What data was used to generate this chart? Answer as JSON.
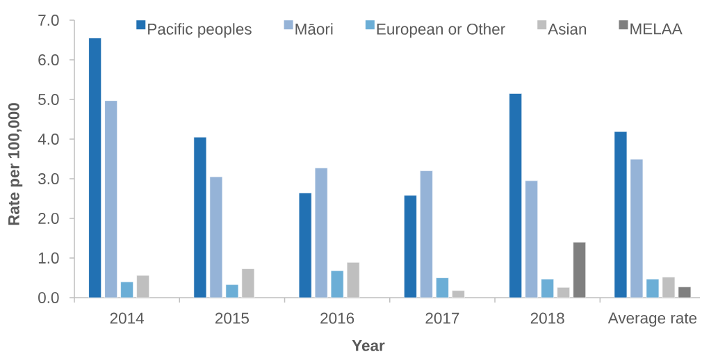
{
  "chart_data": {
    "type": "bar",
    "xlabel": "Year",
    "ylabel": "Rate per 100,000",
    "categories": [
      "2014",
      "2015",
      "2016",
      "2017",
      "2018",
      "Average rate"
    ],
    "series": [
      {
        "name": "Pacific peoples",
        "color": "#2271b3",
        "values": [
          6.55,
          4.05,
          2.64,
          2.58,
          5.15,
          4.19
        ]
      },
      {
        "name": "Māori",
        "color": "#95b3d7",
        "values": [
          4.97,
          3.05,
          3.27,
          3.2,
          2.95,
          3.49
        ]
      },
      {
        "name": "European or Other",
        "color": "#6baed6",
        "values": [
          0.4,
          0.33,
          0.68,
          0.5,
          0.47,
          0.47
        ]
      },
      {
        "name": "Asian",
        "color": "#bfbfbf",
        "values": [
          0.56,
          0.73,
          0.89,
          0.18,
          0.26,
          0.52
        ]
      },
      {
        "name": "MELAA",
        "color": "#7f7f7f",
        "values": [
          null,
          null,
          null,
          null,
          1.4,
          0.27
        ]
      }
    ],
    "ylim": [
      0,
      7
    ],
    "yticks": [
      {
        "value": 0,
        "label": "0.0"
      },
      {
        "value": 1,
        "label": "1.0"
      },
      {
        "value": 2,
        "label": "2.0"
      },
      {
        "value": 3,
        "label": "3.0"
      },
      {
        "value": 4,
        "label": "4.0"
      },
      {
        "value": 5,
        "label": "5.0"
      },
      {
        "value": 6,
        "label": "6.0"
      },
      {
        "value": 7,
        "label": "7.0"
      }
    ],
    "legend": "top"
  }
}
